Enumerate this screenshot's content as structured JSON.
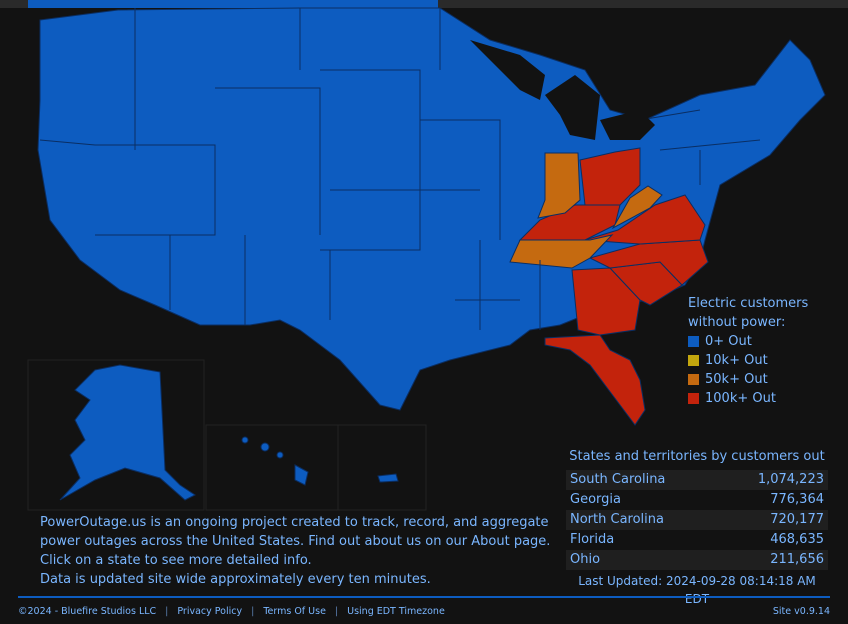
{
  "legend": {
    "title_line1": "Electric customers",
    "title_line2": "without power:",
    "items": [
      {
        "label": "0+ Out",
        "color": "#0d5cc0"
      },
      {
        "label": "10k+ Out",
        "color": "#c4a70e"
      },
      {
        "label": "50k+ Out",
        "color": "#c56a10"
      },
      {
        "label": "100k+ Out",
        "color": "#c3230c"
      }
    ]
  },
  "outages": {
    "title": "States and territories by customers out",
    "rows": [
      {
        "state": "South Carolina",
        "count": "1,074,223"
      },
      {
        "state": "Georgia",
        "count": "776,364"
      },
      {
        "state": "North Carolina",
        "count": "720,177"
      },
      {
        "state": "Florida",
        "count": "468,635"
      },
      {
        "state": "Ohio",
        "count": "211,656"
      }
    ],
    "last_updated": "Last Updated: 2024-09-28 08:14:18 AM EDT"
  },
  "about": {
    "line1": "PowerOutage.us is an ongoing project created to track, record, and aggregate",
    "line2": "power outages across the United States. Find out about us on our About page.",
    "line3": "Click on a state to see more detailed info.",
    "line4": "Data is updated site wide approximately every ten minutes."
  },
  "footer": {
    "copyright": "©2024 - Bluefire Studios LLC",
    "privacy": "Privacy Policy",
    "terms": "Terms Of Use",
    "timezone": "Using EDT Timezone",
    "version": "Site v0.9.14"
  }
}
